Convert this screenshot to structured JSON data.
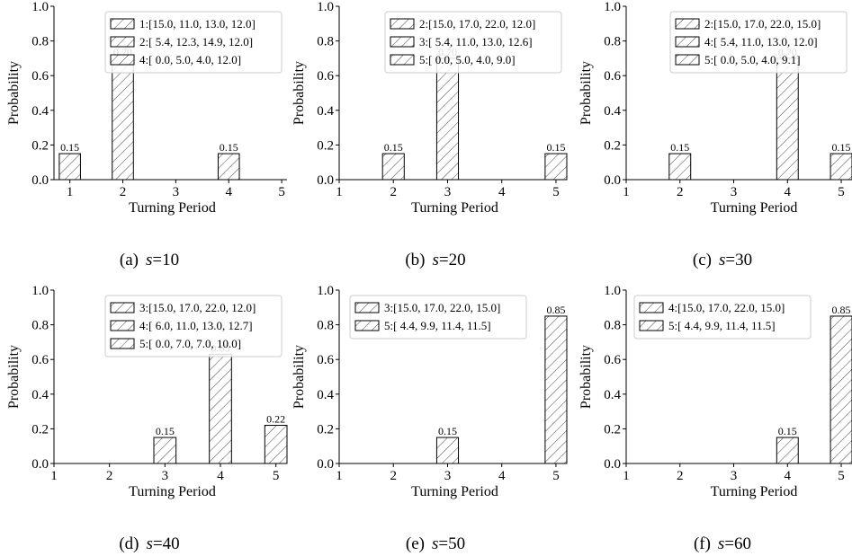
{
  "figure": {
    "panels": [
      {
        "caption_letter": "(a)",
        "caption_var": "s",
        "caption_value": "=10"
      },
      {
        "caption_letter": "(b)",
        "caption_var": "s",
        "caption_value": "=20"
      },
      {
        "caption_letter": "(c)",
        "caption_var": "s",
        "caption_value": "=30"
      },
      {
        "caption_letter": "(d)",
        "caption_var": "s",
        "caption_value": "=40"
      },
      {
        "caption_letter": "(e)",
        "caption_var": "s",
        "caption_value": "=50"
      },
      {
        "caption_letter": "(f)",
        "caption_var": "s",
        "caption_value": "=60"
      }
    ]
  },
  "chart_data": [
    {
      "type": "bar",
      "xlabel": "Turning Period",
      "ylabel": "Probability",
      "xlim": [
        0.7,
        5.1
      ],
      "ylim": [
        0,
        1.0
      ],
      "xticks": [
        1,
        2,
        3,
        4,
        5
      ],
      "yticks": [
        "0.0",
        "0.2",
        "0.4",
        "0.6",
        "0.8",
        "1.0"
      ],
      "bar_pattern": "hatch",
      "legend_position": "top-right",
      "bars": [
        {
          "x": 1,
          "value": 0.15,
          "label": "0.15"
        },
        {
          "x": 2,
          "value": 0.7,
          "label": "0.70"
        },
        {
          "x": 4,
          "value": 0.15,
          "label": "0.15"
        }
      ],
      "legend": [
        "1:[15.0, 11.0, 13.0, 12.0]",
        "2:[ 5.4, 12.3, 14.9, 12.0]",
        "4:[ 0.0,  5.0,  4.0, 12.0]"
      ]
    },
    {
      "type": "bar",
      "xlabel": "Turning Period",
      "ylabel": "Probability",
      "xlim": [
        1,
        5.2
      ],
      "ylim": [
        0,
        1.0
      ],
      "xticks": [
        1,
        2,
        3,
        4,
        5
      ],
      "yticks": [
        "0.0",
        "0.2",
        "0.4",
        "0.6",
        "0.8",
        "1.0"
      ],
      "bar_pattern": "hatch",
      "legend_position": "top-right",
      "bars": [
        {
          "x": 2,
          "value": 0.15,
          "label": "0.15"
        },
        {
          "x": 3,
          "value": 0.7,
          "label": "0.70"
        },
        {
          "x": 5,
          "value": 0.15,
          "label": "0.15"
        }
      ],
      "legend": [
        "2:[15.0, 17.0, 22.0, 12.0]",
        "3:[ 5.4, 11.0, 13.0, 12.6]",
        "5:[ 0.0,  5.0,  4.0,  9.0]"
      ]
    },
    {
      "type": "bar",
      "xlabel": "Turning Period",
      "ylabel": "Probability",
      "xlim": [
        1,
        5.2
      ],
      "ylim": [
        0,
        1.0
      ],
      "xticks": [
        1,
        2,
        3,
        4,
        5
      ],
      "yticks": [
        "0.0",
        "0.2",
        "0.4",
        "0.6",
        "0.8",
        "1.0"
      ],
      "bar_pattern": "hatch",
      "legend_position": "top-right",
      "bars": [
        {
          "x": 2,
          "value": 0.15,
          "label": "0.15"
        },
        {
          "x": 4,
          "value": 0.7,
          "label": "0.70"
        },
        {
          "x": 5,
          "value": 0.15,
          "label": "0.15"
        }
      ],
      "legend": [
        "2:[15.0, 17.0, 22.0, 15.0]",
        "4:[ 5.4, 11.0, 13.0, 12.0]",
        "5:[ 0.0,  5.0,  4.0,  9.1]"
      ]
    },
    {
      "type": "bar",
      "xlabel": "Turning Period",
      "ylabel": "Probability",
      "xlim": [
        1,
        5.2
      ],
      "ylim": [
        0,
        1.0
      ],
      "xticks": [
        1,
        2,
        3,
        4,
        5
      ],
      "yticks": [
        "0.0",
        "0.2",
        "0.4",
        "0.6",
        "0.8",
        "1.0"
      ],
      "bar_pattern": "hatch",
      "legend_position": "top-right",
      "bars": [
        {
          "x": 3,
          "value": 0.15,
          "label": "0.15"
        },
        {
          "x": 4,
          "value": 0.63,
          "label": "0.63"
        },
        {
          "x": 5,
          "value": 0.22,
          "label": "0.22"
        }
      ],
      "legend": [
        "3:[15.0, 17.0, 22.0, 12.0]",
        "4:[ 6.0, 11.0, 13.0, 12.7]",
        "5:[ 0.0,  7.0,  7.0, 10.0]"
      ]
    },
    {
      "type": "bar",
      "xlabel": "Turning Period",
      "ylabel": "Probability",
      "xlim": [
        1,
        5.2
      ],
      "ylim": [
        0,
        1.0
      ],
      "xticks": [
        1,
        2,
        3,
        4,
        5
      ],
      "yticks": [
        "0.0",
        "0.2",
        "0.4",
        "0.6",
        "0.8",
        "1.0"
      ],
      "bar_pattern": "hatch",
      "legend_position": "top-left",
      "bars": [
        {
          "x": 3,
          "value": 0.15,
          "label": "0.15"
        },
        {
          "x": 5,
          "value": 0.85,
          "label": "0.85"
        }
      ],
      "legend": [
        "3:[15.0, 17.0, 22.0, 15.0]",
        "5:[ 4.4,  9.9, 11.4, 11.5]"
      ]
    },
    {
      "type": "bar",
      "xlabel": "Turning Period",
      "ylabel": "Probability",
      "xlim": [
        1,
        5.2
      ],
      "ylim": [
        0,
        1.0
      ],
      "xticks": [
        1,
        2,
        3,
        4,
        5
      ],
      "yticks": [
        "0.0",
        "0.2",
        "0.4",
        "0.6",
        "0.8",
        "1.0"
      ],
      "bar_pattern": "hatch",
      "legend_position": "top-left",
      "bars": [
        {
          "x": 4,
          "value": 0.15,
          "label": "0.15"
        },
        {
          "x": 5,
          "value": 0.85,
          "label": "0.85"
        }
      ],
      "legend": [
        "4:[15.0, 17.0, 22.0, 15.0]",
        "5:[ 4.4,  9.9, 11.4, 11.5]"
      ]
    }
  ]
}
